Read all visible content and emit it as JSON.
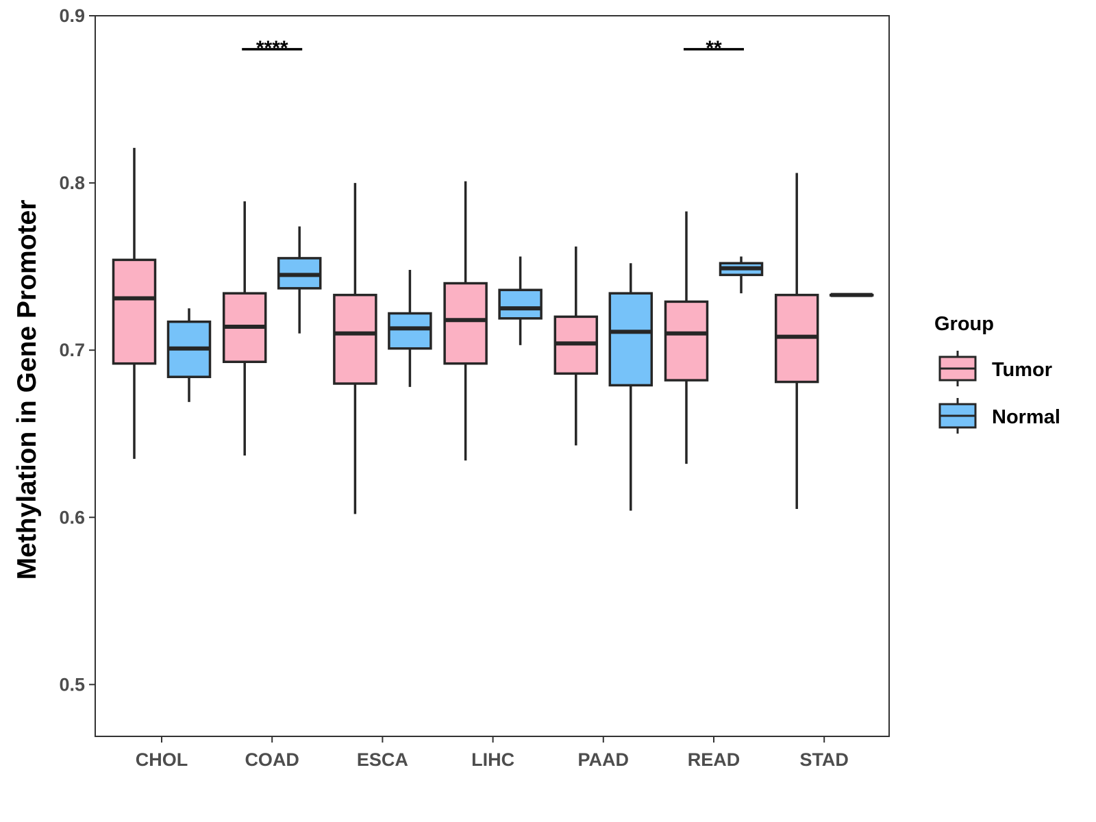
{
  "chart_data": {
    "type": "boxplot",
    "title": "",
    "xlabel": "",
    "ylabel": "Methylation in Gene Promoter",
    "ylim": [
      0.469,
      0.9
    ],
    "yticks": [
      0.5,
      0.6,
      0.7,
      0.8,
      0.9
    ],
    "ytick_labels": [
      "0.5",
      "0.6",
      "0.7",
      "0.8",
      "0.9"
    ],
    "categories": [
      "CHOL",
      "COAD",
      "ESCA",
      "LIHC",
      "PAAD",
      "READ",
      "STAD"
    ],
    "grid": false,
    "legend": {
      "title": "Group",
      "position": "right",
      "entries": [
        "Tumor",
        "Normal"
      ]
    },
    "colors": {
      "Tumor": "#fbb1c3",
      "Normal": "#76c2f9",
      "stroke": "#262626",
      "axis": "#333333"
    },
    "series": [
      {
        "name": "Tumor",
        "boxes": [
          {
            "min": 0.635,
            "q1": 0.692,
            "median": 0.731,
            "q3": 0.754,
            "max": 0.821
          },
          {
            "min": 0.637,
            "q1": 0.693,
            "median": 0.714,
            "q3": 0.734,
            "max": 0.789
          },
          {
            "min": 0.602,
            "q1": 0.68,
            "median": 0.71,
            "q3": 0.733,
            "max": 0.8
          },
          {
            "min": 0.634,
            "q1": 0.692,
            "median": 0.718,
            "q3": 0.74,
            "max": 0.801
          },
          {
            "min": 0.643,
            "q1": 0.686,
            "median": 0.704,
            "q3": 0.72,
            "max": 0.762
          },
          {
            "min": 0.632,
            "q1": 0.682,
            "median": 0.71,
            "q3": 0.729,
            "max": 0.783
          },
          {
            "min": 0.605,
            "q1": 0.681,
            "median": 0.708,
            "q3": 0.733,
            "max": 0.806
          }
        ]
      },
      {
        "name": "Normal",
        "boxes": [
          {
            "min": 0.669,
            "q1": 0.684,
            "median": 0.701,
            "q3": 0.717,
            "max": 0.725
          },
          {
            "min": 0.71,
            "q1": 0.737,
            "median": 0.745,
            "q3": 0.755,
            "max": 0.774
          },
          {
            "min": 0.678,
            "q1": 0.701,
            "median": 0.713,
            "q3": 0.722,
            "max": 0.748
          },
          {
            "min": 0.703,
            "q1": 0.719,
            "median": 0.725,
            "q3": 0.736,
            "max": 0.756
          },
          {
            "min": 0.604,
            "q1": 0.679,
            "median": 0.711,
            "q3": 0.734,
            "max": 0.752
          },
          {
            "min": 0.734,
            "q1": 0.745,
            "median": 0.749,
            "q3": 0.752,
            "max": 0.756
          },
          {
            "min": 0.733,
            "q1": 0.733,
            "median": 0.733,
            "q3": 0.733,
            "max": 0.733
          }
        ]
      }
    ],
    "annotations": [
      {
        "category": "COAD",
        "label": "****",
        "y": 0.88
      },
      {
        "category": "READ",
        "label": "**",
        "y": 0.88
      }
    ]
  }
}
